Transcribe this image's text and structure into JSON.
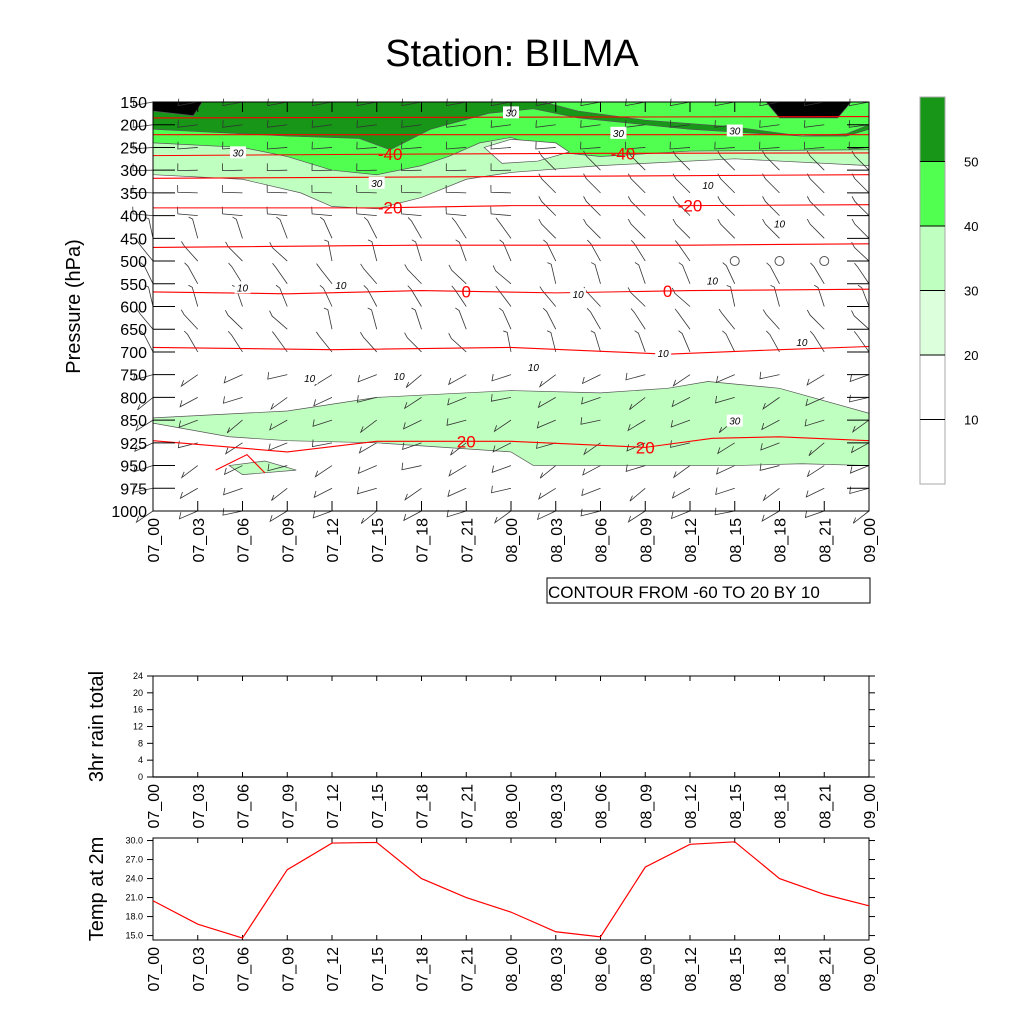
{
  "title": "Station: BILMA",
  "chart_data": [
    {
      "type": "contour",
      "ylabel": "Pressure (hPa)",
      "x_ticks": [
        "07_00",
        "07_03",
        "07_06",
        "07_09",
        "07_12",
        "07_15",
        "07_18",
        "07_21",
        "08_00",
        "08_03",
        "08_06",
        "08_09",
        "08_12",
        "08_15",
        "08_18",
        "08_21",
        "09_00"
      ],
      "y_levels": [
        150,
        200,
        250,
        300,
        350,
        400,
        450,
        500,
        550,
        600,
        650,
        700,
        750,
        800,
        850,
        925,
        950,
        975,
        1000
      ],
      "contour_note": "CONTOUR FROM -60 TO 20 BY 10",
      "colorbar": {
        "labels": [
          "10",
          "20",
          "30",
          "40",
          "50"
        ],
        "colors": [
          "#ffffff",
          "#ffffff",
          "#dcffdc",
          "#bfffbf",
          "#50ff50",
          "#179617"
        ]
      },
      "shading": [
        {
          "level": 3,
          "pts": [
            [
              0,
              150
            ],
            [
              16,
              150
            ],
            [
              16,
              290
            ],
            [
              13,
              275
            ],
            [
              10,
              290
            ],
            [
              8,
              305
            ],
            [
              7,
              320
            ],
            [
              6,
              360
            ],
            [
              5,
              385
            ],
            [
              4,
              380
            ],
            [
              3.3,
              350
            ],
            [
              2,
              320
            ],
            [
              0,
              310
            ]
          ]
        },
        {
          "level": 3,
          "pts": [
            [
              0,
              845
            ],
            [
              3,
              830
            ],
            [
              5,
              800
            ],
            [
              8,
              785
            ],
            [
              10,
              790
            ],
            [
              11.5,
              780
            ],
            [
              12.4,
              765
            ],
            [
              14,
              780
            ],
            [
              16,
              835
            ],
            [
              16,
              950
            ],
            [
              14.5,
              948
            ],
            [
              13,
              950
            ],
            [
              10,
              950
            ],
            [
              8.5,
              950
            ],
            [
              8,
              935
            ],
            [
              5,
              925
            ],
            [
              3,
              918
            ],
            [
              1.7,
              905
            ],
            [
              0,
              860
            ]
          ]
        },
        {
          "level": 3,
          "pts": [
            [
              1.7,
              950
            ],
            [
              2.5,
              945
            ],
            [
              3.2,
              955
            ],
            [
              2,
              960
            ]
          ]
        },
        {
          "level": 4,
          "pts": [
            [
              0,
              150
            ],
            [
              16,
              150
            ],
            [
              16,
              255
            ],
            [
              12,
              258
            ],
            [
              10,
              270
            ],
            [
              9,
              260
            ],
            [
              8,
              228
            ],
            [
              7.3,
              240
            ],
            [
              6.6,
              270
            ],
            [
              6,
              290
            ],
            [
              5,
              310
            ],
            [
              4,
              300
            ],
            [
              3,
              270
            ],
            [
              2,
              250
            ],
            [
              0,
              240
            ]
          ]
        },
        {
          "level": 0,
          "pts": [
            [
              7.4,
              250
            ],
            [
              8,
              232
            ],
            [
              9,
              240
            ],
            [
              9.3,
              260
            ],
            [
              8.6,
              280
            ],
            [
              7.8,
              285
            ]
          ]
        },
        {
          "level": 5,
          "pts": [
            [
              0,
              150
            ],
            [
              8.6,
              150
            ],
            [
              8.8,
              152
            ],
            [
              9.5,
              170
            ],
            [
              11,
              190
            ],
            [
              13,
              205
            ],
            [
              14.5,
              225
            ],
            [
              15.5,
              220
            ],
            [
              16,
              200
            ],
            [
              16,
              150
            ],
            [
              16,
              210
            ],
            [
              15.5,
              225
            ],
            [
              14.5,
              225
            ],
            [
              12,
              210
            ],
            [
              11,
              200
            ],
            [
              9.5,
              185
            ],
            [
              8.5,
              165
            ],
            [
              7.5,
              175
            ],
            [
              6.2,
              210
            ],
            [
              5.3,
              255
            ],
            [
              4.6,
              230
            ],
            [
              3,
              225
            ],
            [
              1,
              215
            ],
            [
              0,
              210
            ]
          ]
        },
        {
          "level": 6,
          "pts": [
            [
              0,
              150
            ],
            [
              1.1,
              150
            ],
            [
              0.9,
              180
            ],
            [
              0,
              170
            ]
          ]
        },
        {
          "level": 6,
          "pts": [
            [
              13.7,
              150
            ],
            [
              15.6,
              150
            ],
            [
              15.3,
              185
            ],
            [
              14,
              185
            ]
          ]
        }
      ],
      "temp_contours": [
        {
          "p": [
            [
              0,
              185
            ],
            [
              16,
              182
            ]
          ]
        },
        {
          "p": [
            [
              0,
              222
            ],
            [
              16,
              222
            ]
          ]
        },
        {
          "p": [
            [
              0,
              268
            ],
            [
              5,
              265
            ],
            [
              10,
              263
            ],
            [
              16,
              262
            ]
          ],
          "label": "-40",
          "at": [
            5.3,
            10.5
          ]
        },
        {
          "p": [
            [
              0,
              318
            ],
            [
              8,
              314
            ],
            [
              16,
              310
            ]
          ]
        },
        {
          "p": [
            [
              0,
              383
            ],
            [
              5,
              383
            ],
            [
              8,
              378
            ],
            [
              12,
              378
            ],
            [
              16,
              376
            ]
          ],
          "label": "-20",
          "at": [
            5.3,
            12
          ]
        },
        {
          "p": [
            [
              0,
              470
            ],
            [
              6,
              465
            ],
            [
              12,
              465
            ],
            [
              16,
              462
            ]
          ]
        },
        {
          "p": [
            [
              0,
              568
            ],
            [
              3,
              572
            ],
            [
              6,
              565
            ],
            [
              9,
              570
            ],
            [
              12,
              565
            ],
            [
              16,
              562
            ]
          ],
          "label": "0",
          "at": [
            7,
            11.5
          ]
        },
        {
          "p": [
            [
              0,
              690
            ],
            [
              4,
              695
            ],
            [
              8,
              690
            ],
            [
              11.5,
              705
            ],
            [
              14,
              695
            ],
            [
              16,
              688
            ]
          ]
        },
        {
          "p": [
            [
              0,
              918
            ],
            [
              3,
              935
            ],
            [
              5,
              920
            ],
            [
              8,
              920
            ],
            [
              11,
              930
            ],
            [
              12.5,
              910
            ],
            [
              14,
              905
            ],
            [
              16,
              918
            ]
          ],
          "label": "20",
          "at": [
            7,
            11
          ]
        },
        {
          "p": [
            [
              1.4,
              955
            ],
            [
              2.1,
              938
            ],
            [
              2.5,
              958
            ]
          ]
        }
      ],
      "speed_labels": [
        {
          "t": 8,
          "p": 175,
          "v": "30"
        },
        {
          "t": 1.9,
          "p": 263,
          "v": "30"
        },
        {
          "t": 10.4,
          "p": 220,
          "v": "30"
        },
        {
          "t": 13,
          "p": 215,
          "v": "30"
        },
        {
          "t": 5,
          "p": 330,
          "v": "30"
        },
        {
          "t": 12.4,
          "p": 335,
          "v": "10"
        },
        {
          "t": 14,
          "p": 420,
          "v": "10"
        },
        {
          "t": 2,
          "p": 560,
          "v": "10"
        },
        {
          "t": 4.2,
          "p": 555,
          "v": "10"
        },
        {
          "t": 9.5,
          "p": 575,
          "v": "10"
        },
        {
          "t": 12.5,
          "p": 545,
          "v": "10"
        },
        {
          "t": 14.5,
          "p": 680,
          "v": "10"
        },
        {
          "t": 11.4,
          "p": 705,
          "v": "10"
        },
        {
          "t": 8.5,
          "p": 735,
          "v": "10"
        },
        {
          "t": 5.5,
          "p": 755,
          "v": "10"
        },
        {
          "t": 3.5,
          "p": 760,
          "v": "10"
        },
        {
          "t": 13,
          "p": 855,
          "v": "30"
        }
      ],
      "calm_points": [
        [
          13,
          500
        ],
        [
          14,
          500
        ],
        [
          15,
          500
        ]
      ]
    },
    {
      "type": "line",
      "ylabel": "3hr rain total",
      "ylim": [
        0,
        24
      ],
      "y_ticks": [
        "0",
        "4",
        "8",
        "12",
        "16",
        "20",
        "24"
      ],
      "x": [
        "07_00",
        "07_03",
        "07_06",
        "07_09",
        "07_12",
        "07_15",
        "07_18",
        "07_21",
        "08_00",
        "08_03",
        "08_06",
        "08_09",
        "08_12",
        "08_15",
        "08_18",
        "08_21",
        "09_00"
      ],
      "values": [
        0,
        0,
        0,
        0,
        0,
        0,
        0,
        0,
        0,
        0,
        0,
        0,
        0,
        0,
        0,
        0,
        0
      ]
    },
    {
      "type": "line",
      "ylabel": "Temp at 2m",
      "ylim": [
        14.3,
        30.4
      ],
      "y_ticks": [
        "15.0",
        "18.0",
        "21.0",
        "24.0",
        "27.0",
        "30.0"
      ],
      "x": [
        "07_00",
        "07_03",
        "07_06",
        "07_09",
        "07_12",
        "07_15",
        "07_18",
        "07_21",
        "08_00",
        "08_03",
        "08_06",
        "08_09",
        "08_12",
        "08_15",
        "08_18",
        "08_21",
        "09_00"
      ],
      "values": [
        20.5,
        16.8,
        14.6,
        25.4,
        29.6,
        29.7,
        24.0,
        21.0,
        18.7,
        15.6,
        14.8,
        25.8,
        29.4,
        29.8,
        24.0,
        21.5,
        19.7
      ],
      "color": "#ff0000"
    }
  ]
}
